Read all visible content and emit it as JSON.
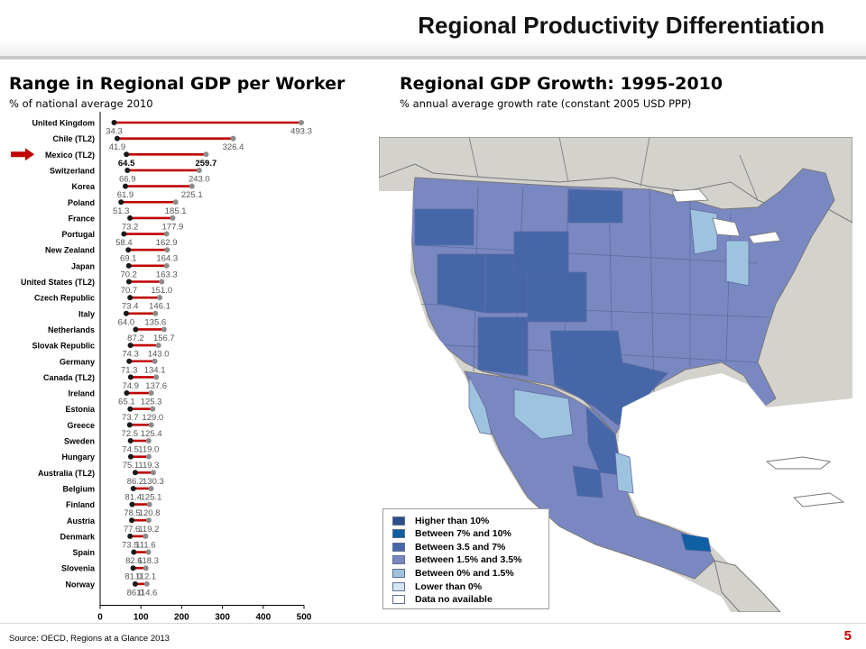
{
  "slide": {
    "title": "Regional Productivity Differentiation",
    "source": "Source: OECD, Regions at a Glance 2013",
    "page_number": "5"
  },
  "left_panel": {
    "heading": "Range in Regional GDP per Worker",
    "subheading": "% of national average 2010"
  },
  "right_panel": {
    "heading": "Regional GDP Growth: 1995-2010",
    "subheading": "% annual average growth rate (constant 2005 USD PPP)"
  },
  "legend": {
    "items": [
      {
        "label": "Higher than 10%",
        "color": "#2c4d8a"
      },
      {
        "label": "Between 7% and 10%",
        "color": "#0e5fa3"
      },
      {
        "label": "Between 3.5 and 7%",
        "color": "#4567a8"
      },
      {
        "label": "Between 1.5% and 3.5%",
        "color": "#7a88c2"
      },
      {
        "label": "Between 0% and 1.5%",
        "color": "#9ec3df"
      },
      {
        "label": "Lower than 0%",
        "color": "#d5e6f3"
      },
      {
        "label": "Data no available",
        "color": "#ffffff"
      }
    ]
  },
  "colors": {
    "range_bar": "#c00000",
    "min_marker": "#1a1a1a",
    "max_marker": "#8c8c8c",
    "highlight_arrow": "#c00000"
  },
  "chart_data": {
    "type": "dumbbell",
    "title": "Range in Regional GDP per Worker",
    "subtitle": "% of national average 2010",
    "xlim": [
      0,
      500
    ],
    "xticks": [
      0,
      100,
      200,
      300,
      400,
      500
    ],
    "highlight": "Mexico (TL2)",
    "series": [
      {
        "name": "Minimum",
        "values": [
          34.3,
          41.9,
          64.5,
          66.9,
          61.9,
          51.3,
          73.2,
          58.4,
          69.1,
          70.2,
          70.7,
          73.4,
          64.0,
          87.2,
          74.3,
          71.3,
          74.9,
          65.1,
          73.7,
          72.5,
          74.5,
          75.1,
          86.2,
          81.4,
          78.5,
          77.6,
          73.5,
          82.6,
          81.0,
          86.0
        ]
      },
      {
        "name": "Maximum",
        "values": [
          493.3,
          326.4,
          259.7,
          243.0,
          225.1,
          185.1,
          177.9,
          162.9,
          164.3,
          163.3,
          151.0,
          146.1,
          135.6,
          156.7,
          143.0,
          134.1,
          137.6,
          125.3,
          129.0,
          125.4,
          119.0,
          119.3,
          130.3,
          125.1,
          120.8,
          119.2,
          111.6,
          118.3,
          112.1,
          114.6
        ]
      }
    ],
    "categories": [
      "United Kingdom",
      "Chile (TL2)",
      "Mexico (TL2)",
      "Switzerland",
      "Korea",
      "Poland",
      "France",
      "Portugal",
      "New Zealand",
      "Japan",
      "United States (TL2)",
      "Czech Republic",
      "Italy",
      "Netherlands",
      "Slovak Republic",
      "Germany",
      "Canada (TL2)",
      "Ireland",
      "Estonia",
      "Greece",
      "Sweden",
      "Hungary",
      "Australia (TL2)",
      "Belgium",
      "Finland",
      "Austria",
      "Denmark",
      "Spain",
      "Slovenia",
      "Norway"
    ],
    "min_labels": [
      "34.3",
      "41.9",
      "64.5",
      "66.9",
      "61.9",
      "51.3",
      "73.2",
      "58.4",
      "69.1",
      "70.2",
      "70.7",
      "73.4",
      "64.0",
      "87.2",
      "74.3",
      "71.3",
      "74.9",
      "65.1",
      "73.7",
      "72.5",
      "74.5",
      "75.1",
      "86.2",
      "81.4",
      "78.5",
      "77.6",
      "73.5",
      "82.6",
      "81.0",
      "86.0"
    ],
    "max_labels": [
      "493.3",
      "326.4",
      "259.7",
      "243.0",
      "225.1",
      "185.1",
      "177.9",
      "162.9",
      "164.3",
      "163.3",
      "151.0",
      "146.1",
      "135.6",
      "156.7",
      "143.0",
      "134.1",
      "137.6",
      "125.3",
      "129.0",
      "125.4",
      "119.0",
      "119.3",
      "130.3",
      "125.1",
      "120.8",
      "119.2",
      "111.6",
      "118.3",
      "112.1",
      "114.6"
    ]
  }
}
